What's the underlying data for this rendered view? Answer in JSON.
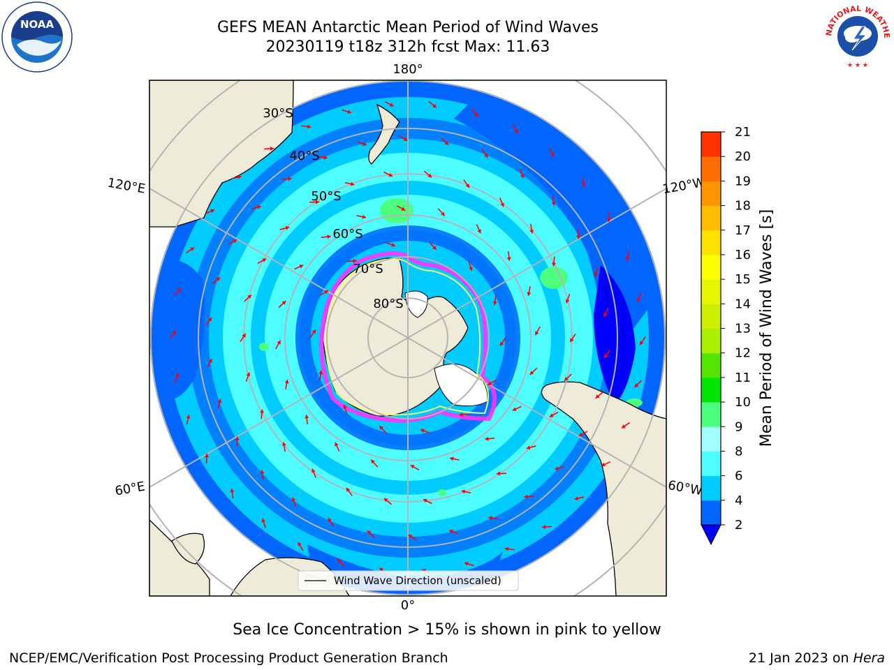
{
  "title": {
    "line1": "GEFS MEAN Antarctic Mean Period of Wind Waves",
    "line2": "20230119 t18z 312h fcst   Max: 11.63"
  },
  "map": {
    "longitude_labels": [
      "180°",
      "120°E",
      "120°W",
      "60°E",
      "60°W",
      "0°"
    ],
    "latitude_labels": [
      "30°S",
      "40°S",
      "50°S",
      "60°S",
      "70°S",
      "80°S"
    ],
    "legend_label": "Wind Wave Direction (unscaled)",
    "colors": {
      "land": "#eeecd9",
      "ice": "#ffffff",
      "ice_edge": [
        "#ff33ff",
        "#ffff66"
      ],
      "arrows": "#ff0000",
      "grid": "#b4b4b4"
    }
  },
  "colorbar": {
    "label": "Mean Period of Wind Waves [s]",
    "ticks": [
      "2",
      "4",
      "6",
      "8",
      "9",
      "10",
      "11",
      "12",
      "13",
      "14",
      "15",
      "16",
      "17",
      "18",
      "19",
      "20",
      "21"
    ],
    "colors": [
      "#0066ff",
      "#00ccff",
      "#4dfdff",
      "#a0ffff",
      "#4dff7f",
      "#00e600",
      "#55e600",
      "#aaf000",
      "#ccf000",
      "#e6f500",
      "#ffff00",
      "#ffe100",
      "#ffbe00",
      "#ff9600",
      "#ff6e00",
      "#ff3200",
      "#ff0000"
    ],
    "under_color": "#0000ff"
  },
  "notes": {
    "ice": "Sea Ice Concentration > 15% is shown in pink to yellow",
    "footer_left": "NCEP/EMC/Verification Post Processing Product Generation Branch",
    "footer_date": "21 Jan 2023 on ",
    "footer_machine": "Hera"
  },
  "logos": {
    "noaa_text": "NOAA",
    "nws_text": "NATIONAL WEATHER SERVICE"
  }
}
